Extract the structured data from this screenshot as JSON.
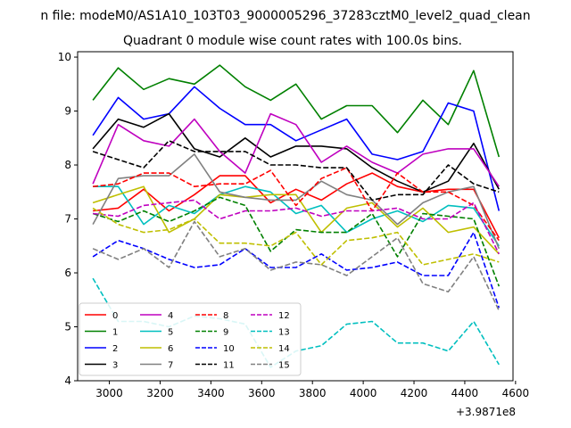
{
  "figure": {
    "title": "n file: modeM0/AS1A10_103T03_9000005296_37283cztM0_level2_quad_clean",
    "subtitle": "Quadrant 0 module wise count rates with 100.0s bins.",
    "x_offset_label": "+3.9871e8"
  },
  "chart_data": {
    "type": "line",
    "title": "Quadrant 0 module wise count rates with 100.0s bins.",
    "xlabel": "",
    "ylabel": "",
    "x_offset": "+3.9871e8",
    "xlim": [
      2875,
      4590
    ],
    "ylim": [
      4.0,
      10.1
    ],
    "xticks": [
      3000,
      3200,
      3400,
      3600,
      3800,
      4000,
      4200,
      4400,
      4600
    ],
    "yticks": [
      4,
      5,
      6,
      7,
      8,
      9,
      10
    ],
    "grid": false,
    "legend_position": "lower-left",
    "legend_columns": 4,
    "x": [
      2935,
      3035,
      3135,
      3235,
      3335,
      3435,
      3535,
      3635,
      3735,
      3835,
      3935,
      4035,
      4135,
      4235,
      4335,
      4435,
      4535
    ],
    "series": [
      {
        "name": "0",
        "color": "#ff0000",
        "style": "solid",
        "values": [
          7.15,
          7.2,
          7.55,
          7.15,
          7.45,
          7.8,
          7.8,
          7.3,
          7.55,
          7.35,
          7.65,
          7.85,
          7.6,
          7.5,
          7.55,
          7.55,
          6.65
        ]
      },
      {
        "name": "1",
        "color": "#008000",
        "style": "solid",
        "values": [
          9.2,
          9.8,
          9.4,
          9.6,
          9.5,
          9.85,
          9.45,
          9.2,
          9.5,
          8.85,
          9.1,
          9.1,
          8.6,
          9.2,
          8.75,
          9.75,
          8.15
        ]
      },
      {
        "name": "2",
        "color": "#0000ff",
        "style": "solid",
        "values": [
          8.55,
          9.25,
          8.85,
          8.95,
          9.45,
          9.05,
          8.75,
          8.75,
          8.45,
          8.65,
          8.85,
          8.2,
          8.1,
          8.25,
          9.15,
          9.0,
          7.15
        ]
      },
      {
        "name": "3",
        "color": "#000000",
        "style": "solid",
        "values": [
          8.3,
          8.85,
          8.7,
          8.95,
          8.3,
          8.15,
          8.5,
          8.15,
          8.35,
          8.35,
          8.3,
          7.95,
          7.7,
          7.5,
          7.7,
          8.4,
          7.55
        ]
      },
      {
        "name": "4",
        "color": "#bf00bf",
        "style": "solid",
        "values": [
          7.65,
          8.75,
          8.45,
          8.35,
          8.85,
          8.25,
          7.85,
          8.95,
          8.75,
          8.05,
          8.35,
          8.05,
          7.85,
          8.2,
          8.3,
          8.3,
          7.6
        ]
      },
      {
        "name": "5",
        "color": "#00bfbf",
        "style": "solid",
        "values": [
          7.6,
          7.6,
          6.9,
          7.25,
          7.1,
          7.45,
          7.6,
          7.5,
          7.1,
          7.25,
          6.75,
          7.0,
          7.15,
          6.95,
          7.25,
          7.2,
          6.5
        ]
      },
      {
        "name": "6",
        "color": "#bfbf00",
        "style": "solid",
        "values": [
          7.3,
          7.45,
          7.6,
          6.75,
          7.0,
          7.45,
          7.4,
          7.45,
          7.45,
          6.75,
          7.2,
          7.3,
          6.85,
          7.2,
          6.75,
          6.85,
          6.35
        ]
      },
      {
        "name": "7",
        "color": "#808080",
        "style": "solid",
        "values": [
          6.9,
          7.75,
          7.8,
          7.8,
          8.2,
          7.5,
          7.4,
          7.35,
          7.35,
          7.7,
          7.45,
          7.35,
          6.9,
          7.3,
          7.5,
          7.6,
          6.45
        ]
      },
      {
        "name": "8",
        "color": "#ff0000",
        "style": "dashed",
        "values": [
          7.6,
          7.65,
          7.85,
          7.85,
          7.6,
          7.65,
          7.65,
          7.9,
          7.25,
          7.75,
          7.95,
          7.15,
          7.85,
          7.5,
          7.5,
          7.25,
          6.6
        ]
      },
      {
        "name": "9",
        "color": "#008000",
        "style": "dashed",
        "values": [
          7.1,
          6.95,
          7.15,
          6.95,
          7.15,
          7.4,
          7.25,
          6.4,
          6.8,
          6.75,
          6.75,
          7.1,
          6.3,
          7.1,
          7.05,
          7.0,
          5.75
        ]
      },
      {
        "name": "10",
        "color": "#0000ff",
        "style": "dashed",
        "values": [
          6.3,
          6.6,
          6.45,
          6.25,
          6.1,
          6.15,
          6.45,
          6.1,
          6.1,
          6.35,
          6.05,
          6.1,
          6.2,
          5.95,
          5.95,
          6.75,
          5.35
        ]
      },
      {
        "name": "11",
        "color": "#000000",
        "style": "dashed",
        "values": [
          8.25,
          8.1,
          7.95,
          8.45,
          8.25,
          8.25,
          8.25,
          8.0,
          8.0,
          7.95,
          7.95,
          7.35,
          7.45,
          7.45,
          8.0,
          7.65,
          7.5
        ]
      },
      {
        "name": "12",
        "color": "#bf00bf",
        "style": "dashed",
        "values": [
          7.1,
          7.05,
          7.25,
          7.3,
          7.35,
          7.0,
          7.15,
          7.15,
          7.2,
          7.05,
          7.15,
          7.15,
          7.2,
          7.0,
          7.0,
          7.3,
          6.35
        ]
      },
      {
        "name": "13",
        "color": "#00bfbf",
        "style": "dashed",
        "values": [
          5.9,
          5.1,
          5.1,
          5.0,
          5.2,
          5.15,
          5.05,
          4.25,
          4.55,
          4.65,
          5.05,
          5.1,
          4.7,
          4.7,
          4.55,
          5.1,
          4.3
        ]
      },
      {
        "name": "14",
        "color": "#bfbf00",
        "style": "dashed",
        "values": [
          7.2,
          6.9,
          6.75,
          6.8,
          7.0,
          6.55,
          6.55,
          6.5,
          6.75,
          6.15,
          6.6,
          6.65,
          6.75,
          6.15,
          6.25,
          6.35,
          6.2
        ]
      },
      {
        "name": "15",
        "color": "#808080",
        "style": "dashed",
        "values": [
          6.45,
          6.25,
          6.45,
          6.1,
          6.95,
          6.3,
          6.45,
          6.05,
          6.2,
          6.15,
          5.95,
          6.3,
          6.65,
          5.8,
          5.65,
          6.3,
          5.3
        ]
      }
    ]
  }
}
